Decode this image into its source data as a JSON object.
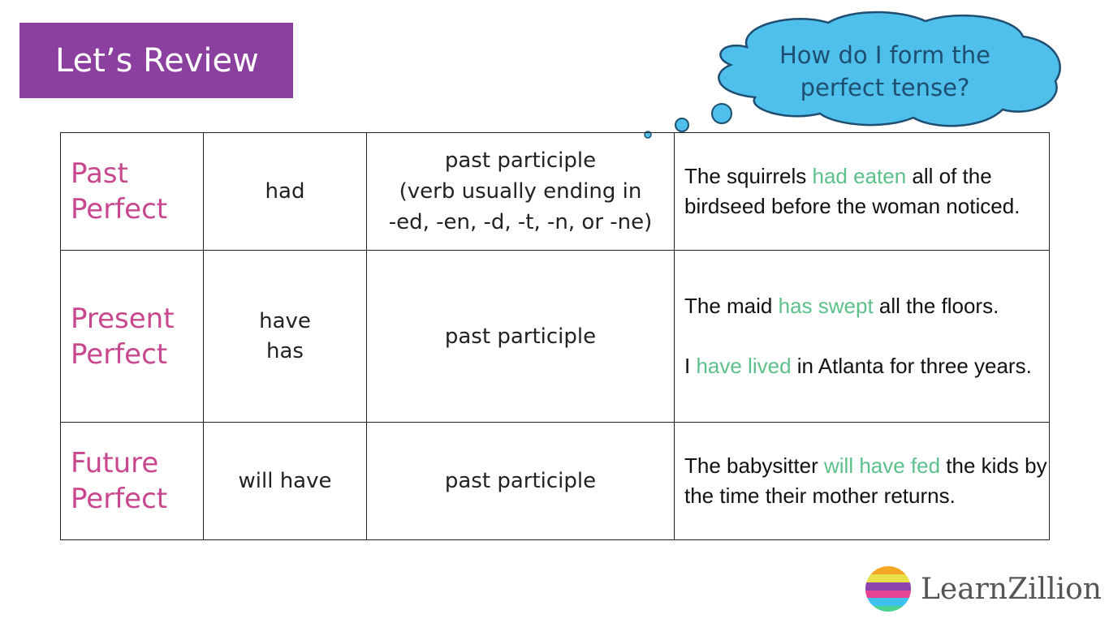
{
  "header": {
    "title": "Let’s Review"
  },
  "thought_bubble": {
    "text_line1": "How do I form the",
    "text_line2": "perfect tense?",
    "color": "#4fc0ec"
  },
  "table": {
    "rows": [
      {
        "tense_line1": "Past",
        "tense_line2": "Perfect",
        "helper_line1": "had",
        "helper_line2": "",
        "form_line1": "past participle",
        "form_line2": "(verb usually ending in",
        "form_line3": "-ed, -en, -d,  -t, -n, or -ne)",
        "examples": [
          {
            "pre": "The squirrels ",
            "hl": "had eaten",
            "post": " all of the birdseed before the woman noticed."
          }
        ]
      },
      {
        "tense_line1": "Present",
        "tense_line2": "Perfect",
        "helper_line1": "have",
        "helper_line2": "has",
        "form_line1": "past participle",
        "examples": [
          {
            "pre": "The maid ",
            "hl": "has swept",
            "post": " all the floors."
          },
          {
            "pre": "I ",
            "hl": "have lived",
            "post": " in Atlanta for three years."
          }
        ]
      },
      {
        "tense_line1": "Future",
        "tense_line2": "Perfect",
        "helper_line1": "will have",
        "form_line1": "past participle",
        "examples": [
          {
            "pre": "The babysitter ",
            "hl": "will have fed",
            "post": " the kids by the time their mother returns."
          }
        ]
      }
    ]
  },
  "colors": {
    "title_bg": "#8b3f9f",
    "tense": "#c8478f",
    "highlight": "#5cc08a"
  },
  "logo": {
    "text": "LearnZillion"
  }
}
